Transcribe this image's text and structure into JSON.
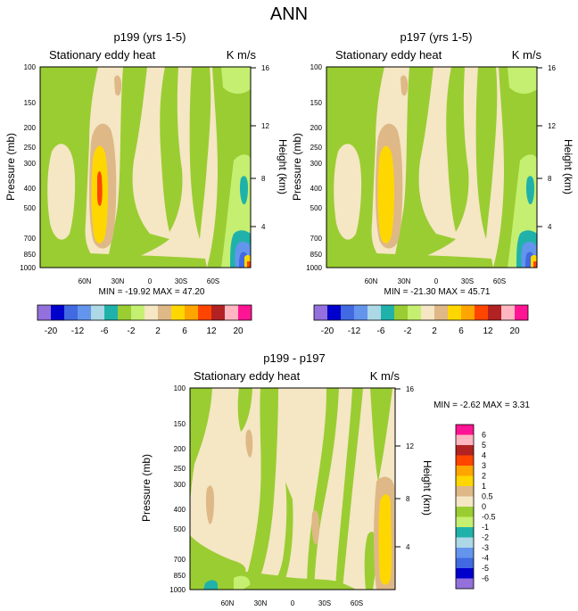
{
  "page_title": "ANN",
  "colors": {
    "c_n25": "#9370DB",
    "c_n15": "#0000CD",
    "c_n12": "#4169E1",
    "c_n9": "#6495ED",
    "c_n6": "#ADD8E6",
    "c_n4": "#20B2AA",
    "c_n2": "#9ACD32",
    "c_n1": "#C5EF70",
    "c_0": "#F5E6C4",
    "c_2": "#DEB887",
    "c_4": "#FFD700",
    "c_6": "#FFA500",
    "c_9": "#FF4500",
    "c_12": "#B22222",
    "c_16": "#FFB6C1",
    "c_20": "#FF1493"
  },
  "chart_data": [
    {
      "type": "contour",
      "title": "p199 (yrs 1-5)",
      "subtitle": "Stationary eddy heat",
      "units": "K m/s",
      "ylabel": "Pressure (mb)",
      "y2label": "Height (km)",
      "xticks": [
        "60N",
        "30N",
        "0",
        "30S",
        "60S"
      ],
      "yticks": [
        "100",
        "150",
        "200",
        "250",
        "300",
        "400",
        "500",
        "700",
        "850",
        "1000"
      ],
      "y2ticks": [
        "16",
        "12",
        "8",
        "4"
      ],
      "stats": "MIN = -19.92  MAX = 47.20",
      "colorbar_labels": [
        "-20",
        "-12",
        "-6",
        "-2",
        "2",
        "6",
        "12",
        "20"
      ]
    },
    {
      "type": "contour",
      "title": "p197 (yrs 1-5)",
      "subtitle": "Stationary eddy heat",
      "units": "K m/s",
      "ylabel": "Pressure (mb)",
      "y2label": "Height (km)",
      "xticks": [
        "60N",
        "30N",
        "0",
        "30S",
        "60S"
      ],
      "yticks": [
        "100",
        "150",
        "200",
        "250",
        "300",
        "400",
        "500",
        "700",
        "850",
        "1000"
      ],
      "y2ticks": [
        "16",
        "12",
        "8",
        "4"
      ],
      "stats": "MIN = -21.30  MAX = 45.71",
      "colorbar_labels": [
        "-20",
        "-12",
        "-6",
        "-2",
        "2",
        "6",
        "12",
        "20"
      ]
    },
    {
      "type": "contour",
      "title": "p199 - p197",
      "subtitle": "Stationary eddy heat",
      "units": "K m/s",
      "ylabel": "Pressure (mb)",
      "y2label": "Height (km)",
      "xticks": [
        "60N",
        "30N",
        "0",
        "30S",
        "60S"
      ],
      "yticks": [
        "100",
        "150",
        "200",
        "250",
        "300",
        "400",
        "500",
        "700",
        "850",
        "1000"
      ],
      "y2ticks": [
        "16",
        "12",
        "8",
        "4"
      ],
      "stats": "MIN = -2.62  MAX =  3.31",
      "colorbar_labels": [
        "6",
        "5",
        "4",
        "3",
        "2",
        "1",
        "0.5",
        "0",
        "-0.5",
        "-1",
        "-2",
        "-3",
        "-4",
        "-5",
        "-6"
      ]
    }
  ]
}
